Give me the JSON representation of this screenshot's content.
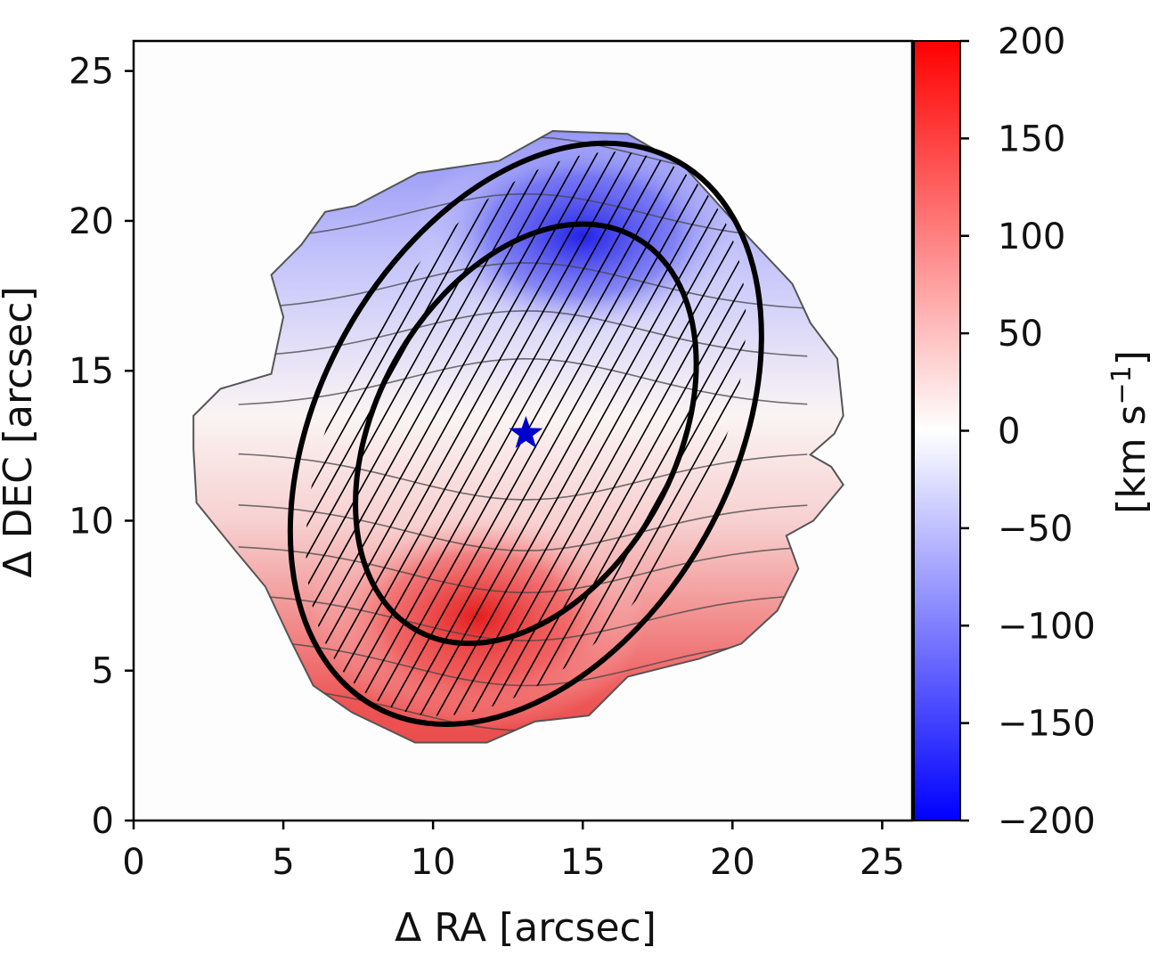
{
  "chart_data": {
    "type": "heatmap",
    "subtype": "velocity-map",
    "xlabel": "Δ RA  [arcsec]",
    "ylabel": "Δ DEC [arcsec]",
    "xlim": [
      0,
      26
    ],
    "ylim": [
      0,
      26
    ],
    "xticks": [
      0,
      5,
      10,
      15,
      20,
      25
    ],
    "yticks": [
      0,
      5,
      10,
      15,
      20,
      25
    ],
    "grid": false,
    "colorbar": {
      "label_main": "[km s",
      "label_exp": "−1",
      "label_end": "]",
      "range": [
        -200,
        200
      ],
      "ticks": [
        "200",
        "150",
        "100",
        "50",
        "0",
        "−50",
        "−100",
        "−150",
        "−200"
      ],
      "tick_values": [
        200,
        150,
        100,
        50,
        0,
        -50,
        -100,
        -150,
        -200
      ],
      "colormap": "bwr",
      "color_low": "#0000ff",
      "color_mid": "#ffffff",
      "color_high": "#ff0000"
    },
    "center_marker": {
      "type": "star",
      "x": 13.1,
      "y": 12.9,
      "color": "#0000cc"
    },
    "ellipses": [
      {
        "name": "outer",
        "cx": 13.1,
        "cy": 12.9,
        "semi_major": 10.4,
        "semi_minor": 6.9,
        "pa_deg": 29
      },
      {
        "name": "inner",
        "cx": 13.1,
        "cy": 12.9,
        "semi_major": 7.5,
        "semi_minor": 5.0,
        "pa_deg": 29
      }
    ],
    "velocity_field": {
      "v_max": 150,
      "gradient_axis": "vertical",
      "positive_side": "south"
    }
  }
}
